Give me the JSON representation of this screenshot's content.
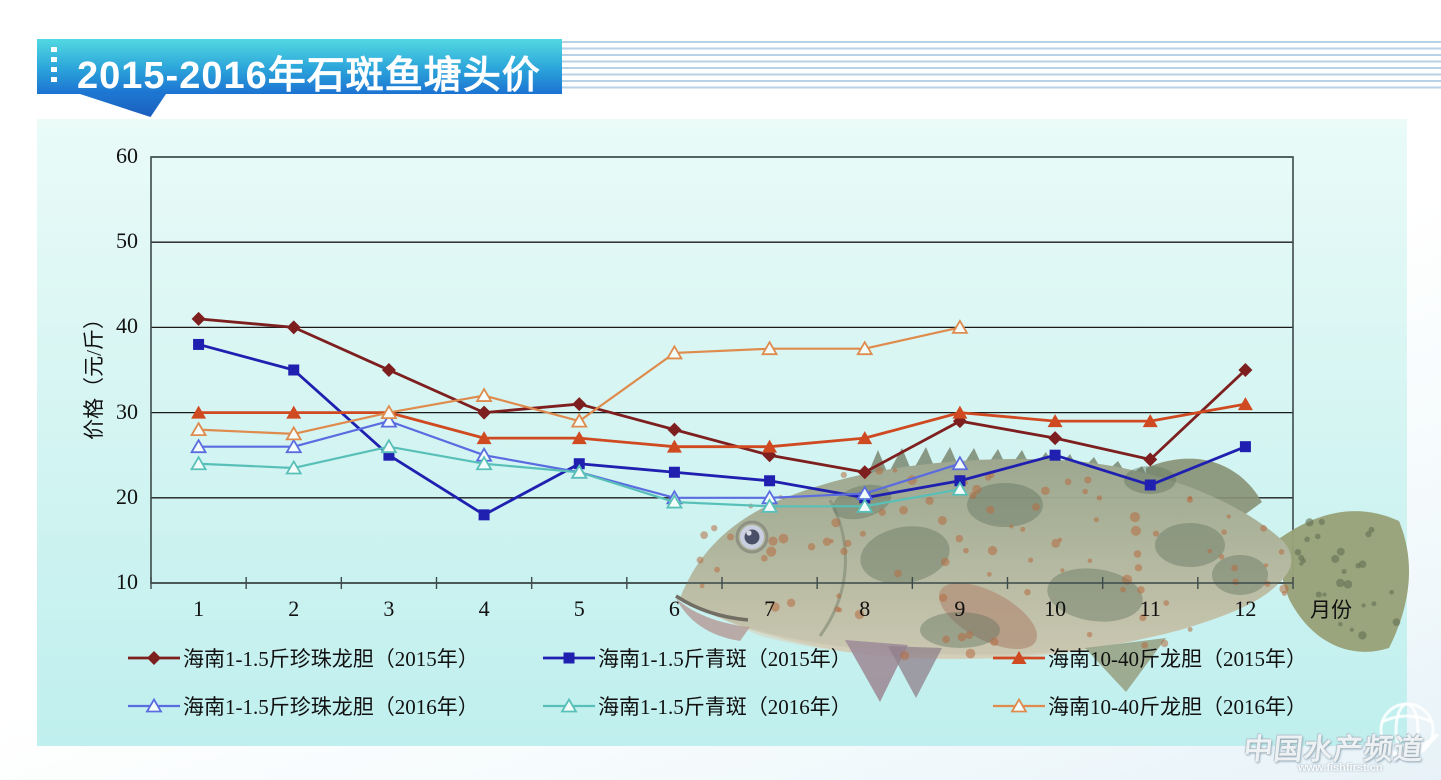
{
  "banner": {
    "title": "2015-2016年石斑鱼塘头价"
  },
  "watermark": {
    "name": "中国水产频道",
    "url": "www.fishfirst.cn",
    "icon": "globe-icon"
  },
  "chart_data": {
    "type": "line",
    "x": [
      1,
      2,
      3,
      4,
      5,
      6,
      7,
      8,
      9,
      10,
      11,
      12
    ],
    "xlabel": "月份",
    "ylabel": "价格（元/斤）",
    "ylim": [
      10,
      60
    ],
    "yticks": [
      10,
      20,
      30,
      40,
      50,
      60
    ],
    "grid": true,
    "legend_position": "bottom",
    "series": [
      {
        "name": "海南1-1.5斤珍珠龙胆（2015年）",
        "color": "#7E1F1F",
        "marker": "diamond",
        "values": [
          41,
          40,
          35,
          30,
          31,
          28,
          25,
          23,
          29,
          27,
          24.5,
          35
        ]
      },
      {
        "name": "海南1-1.5斤青斑（2015年）",
        "color": "#2020B0",
        "marker": "square",
        "values": [
          38,
          35,
          25,
          18,
          24,
          23,
          22,
          20,
          22,
          25,
          21.5,
          26
        ]
      },
      {
        "name": "海南10-40斤龙胆（2015年）",
        "color": "#CF4A21",
        "marker": "triangle",
        "values": [
          30,
          30,
          30,
          27,
          27,
          26,
          26,
          27,
          30,
          29,
          29,
          31
        ]
      },
      {
        "name": "海南1-1.5斤珍珠龙胆（2016年）",
        "color": "#5A6CE0",
        "marker": "triangle-open",
        "values": [
          26,
          26,
          29,
          25,
          23,
          20,
          20,
          20.5,
          24,
          null,
          null,
          null
        ]
      },
      {
        "name": "海南1-1.5斤青斑（2016年）",
        "color": "#58C0B8",
        "marker": "triangle-open",
        "values": [
          24,
          23.5,
          26,
          24,
          23,
          19.5,
          19,
          19,
          21,
          null,
          null,
          null
        ]
      },
      {
        "name": "海南10-40斤龙胆（2016年）",
        "color": "#DE8B4D",
        "marker": "triangle-open",
        "values": [
          28,
          27.5,
          30,
          32,
          29,
          37,
          37.5,
          37.5,
          40,
          null,
          null,
          null
        ]
      }
    ]
  }
}
